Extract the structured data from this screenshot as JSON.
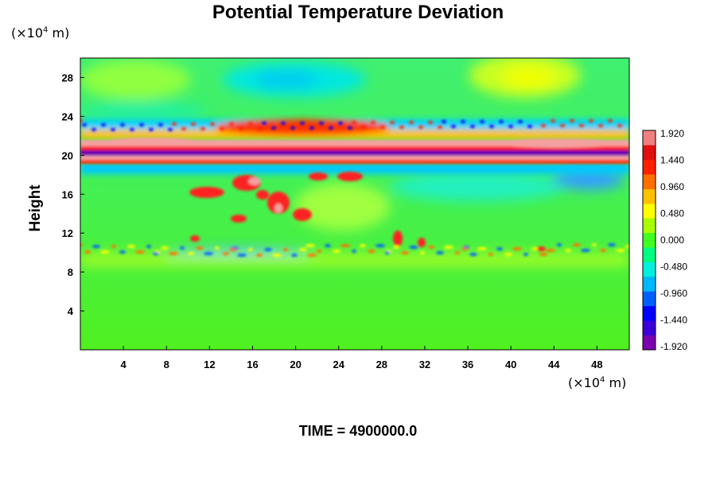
{
  "title": "Potential Temperature Deviation",
  "y_unit": {
    "prefix": "(×10",
    "exp": "4",
    "suffix": " m)"
  },
  "x_unit": {
    "prefix": "(×10",
    "exp": "4",
    "suffix": " m)"
  },
  "time_label": "TIME = 4900000.0",
  "chart_data": {
    "type": "heatmap",
    "title": "Potential Temperature Deviation",
    "ylabel": "Height",
    "xlabel": "",
    "xlim": [
      0,
      51
    ],
    "ylim": [
      0,
      30
    ],
    "xticks": [
      4,
      8,
      12,
      16,
      20,
      24,
      28,
      32,
      36,
      40,
      44,
      48
    ],
    "yticks": [
      4,
      8,
      12,
      16,
      20,
      24,
      28
    ],
    "colorbar": {
      "range": [
        -1.92,
        1.92
      ],
      "ticks": [
        "1.920",
        "1.440",
        "0.960",
        "0.480",
        "0.000",
        "-0.480",
        "-0.960",
        "-1.440",
        "-1.920"
      ],
      "colors": [
        "#7a00b0",
        "#3c00d8",
        "#0000ff",
        "#0060ff",
        "#00b8ff",
        "#00f0e0",
        "#00ff80",
        "#40ff20",
        "#a8ff00",
        "#ffff00",
        "#ffc000",
        "#ff7000",
        "#ff2000",
        "#e01010",
        "#f08080"
      ]
    }
  }
}
